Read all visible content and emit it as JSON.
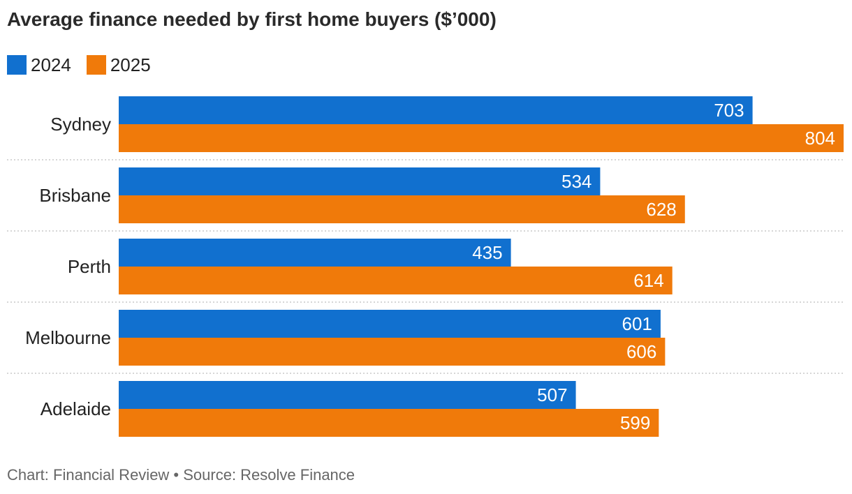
{
  "chart_data": {
    "type": "bar",
    "orientation": "horizontal",
    "title": "Average finance needed by first home buyers ($’000)",
    "categories": [
      "Sydney",
      "Brisbane",
      "Perth",
      "Melbourne",
      "Adelaide"
    ],
    "series": [
      {
        "name": "2024",
        "color": "#1170cf",
        "values": [
          703,
          534,
          435,
          601,
          507
        ]
      },
      {
        "name": "2025",
        "color": "#f07a0a",
        "values": [
          804,
          628,
          614,
          606,
          599
        ]
      }
    ],
    "xlim": [
      0,
      804
    ],
    "grid": false,
    "legend": "top-left",
    "xlabel": "",
    "ylabel": ""
  },
  "colors": {
    "label_on_bar": "#ffffff",
    "category_text": "#222222",
    "divider": "#c8c8c8"
  },
  "footer": "Chart: Financial Review • Source: Resolve Finance"
}
